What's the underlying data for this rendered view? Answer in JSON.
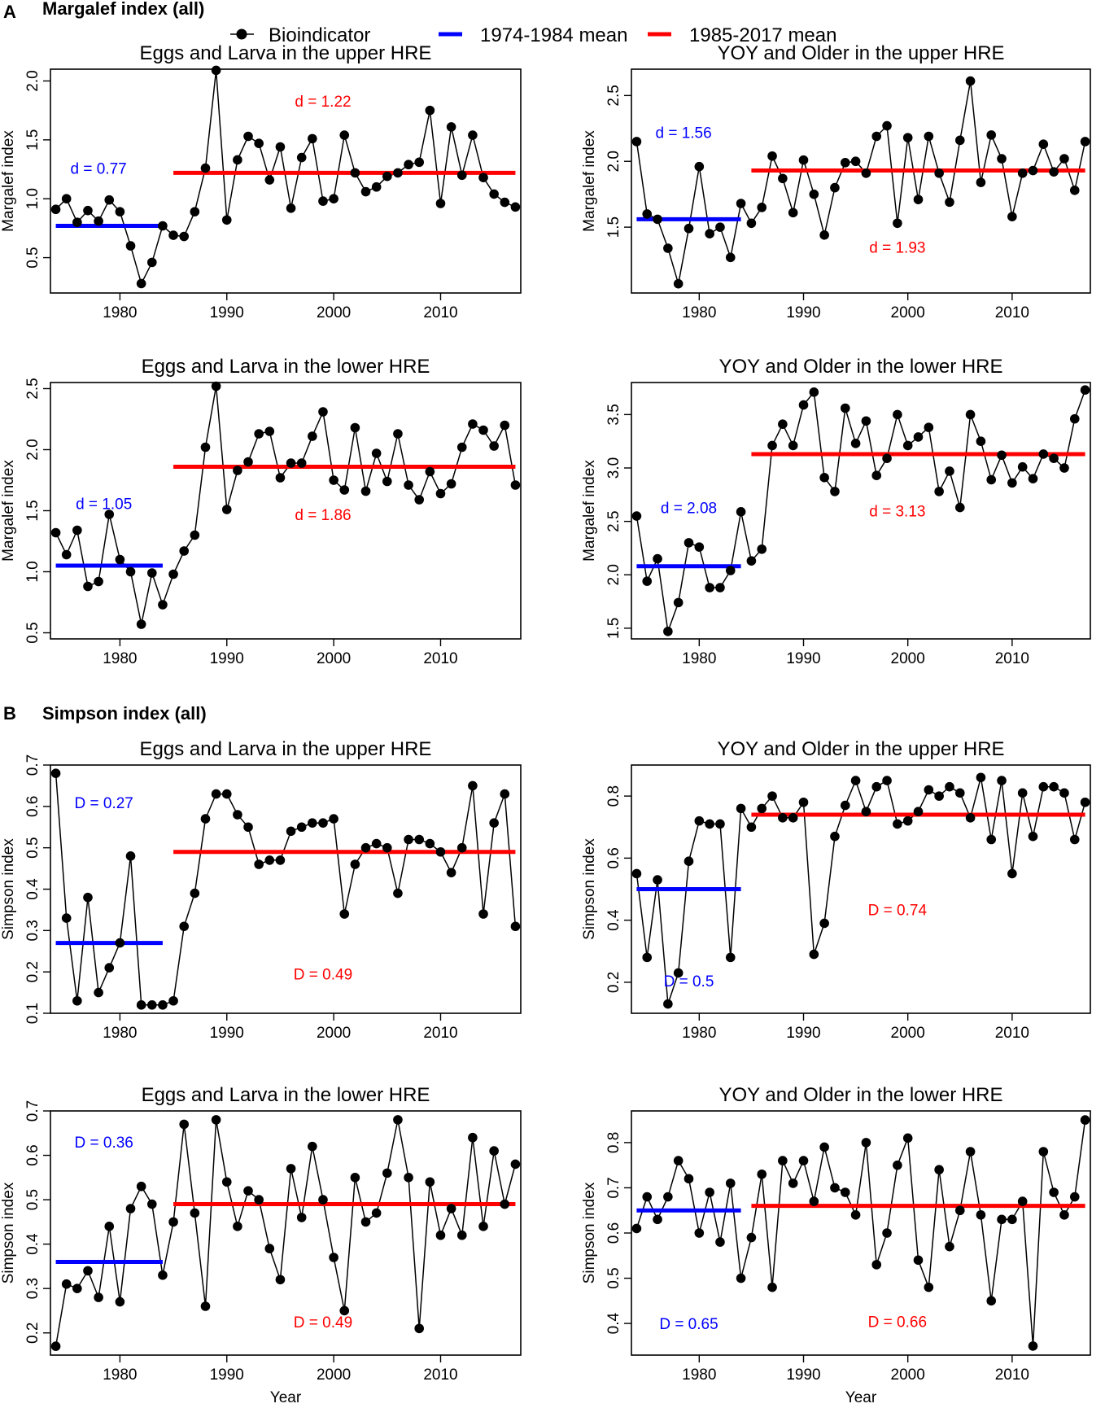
{
  "figure": {
    "sections": [
      {
        "letter": "A",
        "title": "Margalef index (all)"
      },
      {
        "letter": "B",
        "title": "Simpson index (all)"
      }
    ],
    "legend": {
      "items": [
        {
          "label": "Bioindicator",
          "kind": "points",
          "color": "#000000"
        },
        {
          "label": "1974-1984 mean",
          "kind": "line",
          "color": "#0000ff"
        },
        {
          "label": "1985-2017 mean",
          "kind": "line",
          "color": "#ff0000"
        }
      ]
    },
    "xlabel": "Year"
  },
  "chart_data": [
    {
      "type": "line",
      "title": "Eggs and Larva in the upper HRE",
      "xlabel": "",
      "ylabel": "Margalef index",
      "xlim": [
        1973.5,
        2017.5
      ],
      "ylim": [
        0.2,
        2.1
      ],
      "xticks": [
        1980,
        1990,
        2000,
        2010
      ],
      "yticks": [
        0.5,
        1.0,
        1.5,
        2.0
      ],
      "ytick_labels": [
        "0.5",
        "1.0",
        "1.5",
        "2.0"
      ],
      "series": [
        {
          "name": "Bioindicator",
          "x_start": 1974,
          "values": [
            0.91,
            1.0,
            0.8,
            0.9,
            0.81,
            0.99,
            0.89,
            0.6,
            0.28,
            0.46,
            0.77,
            0.69,
            0.68,
            0.89,
            1.26,
            2.09,
            0.82,
            1.33,
            1.53,
            1.47,
            1.16,
            1.44,
            0.92,
            1.35,
            1.51,
            0.98,
            1.0,
            1.54,
            1.22,
            1.06,
            1.1,
            1.19,
            1.22,
            1.29,
            1.31,
            1.75,
            0.96,
            1.61,
            1.2,
            1.54,
            1.18,
            1.04,
            0.97,
            0.93
          ]
        }
      ],
      "means": [
        {
          "name": "1974-1984 mean",
          "value": 0.77,
          "x_range": [
            1974,
            1984
          ]
        },
        {
          "name": "1985-2017 mean",
          "value": 1.22,
          "x_range": [
            1985,
            2017
          ]
        }
      ],
      "annotations": [
        {
          "text": "d = 0.77",
          "x": 1978,
          "y": 1.26,
          "color": "blue"
        },
        {
          "text": "d = 1.22",
          "x": 1999,
          "y": 1.83,
          "color": "red"
        }
      ]
    },
    {
      "type": "line",
      "title": "YOY and Older in the upper HRE",
      "xlabel": "",
      "ylabel": "Margalef index",
      "xlim": [
        1973.5,
        2017.5
      ],
      "ylim": [
        1.0,
        2.7
      ],
      "xticks": [
        1980,
        1990,
        2000,
        2010
      ],
      "yticks": [
        1.5,
        2.0,
        2.5
      ],
      "ytick_labels": [
        "1.5",
        "2.0",
        "2.5"
      ],
      "series": [
        {
          "name": "Bioindicator",
          "x_start": 1974,
          "values": [
            2.15,
            1.6,
            1.56,
            1.34,
            1.07,
            1.49,
            1.96,
            1.45,
            1.5,
            1.27,
            1.68,
            1.53,
            1.65,
            2.04,
            1.87,
            1.61,
            2.01,
            1.75,
            1.44,
            1.8,
            1.99,
            2.0,
            1.91,
            2.19,
            2.27,
            1.53,
            2.18,
            1.71,
            2.19,
            1.91,
            1.69,
            2.16,
            2.61,
            1.84,
            2.2,
            2.02,
            1.58,
            1.91,
            1.93,
            2.13,
            1.92,
            2.02,
            1.78,
            2.15
          ]
        }
      ],
      "means": [
        {
          "name": "1974-1984 mean",
          "value": 1.56,
          "x_range": [
            1974,
            1984
          ]
        },
        {
          "name": "1985-2017 mean",
          "value": 1.93,
          "x_range": [
            1985,
            2017
          ]
        }
      ],
      "annotations": [
        {
          "text": "d = 1.56",
          "x": 1978.5,
          "y": 2.22,
          "color": "blue"
        },
        {
          "text": "d = 1.93",
          "x": 1999,
          "y": 1.35,
          "color": "red"
        }
      ]
    },
    {
      "type": "line",
      "title": "Eggs and Larva in the lower HRE",
      "xlabel": "",
      "ylabel": "Margalef index",
      "xlim": [
        1973.5,
        2017.5
      ],
      "ylim": [
        0.45,
        2.55
      ],
      "xticks": [
        1980,
        1990,
        2000,
        2010
      ],
      "yticks": [
        0.5,
        1.0,
        1.5,
        2.0,
        2.5
      ],
      "ytick_labels": [
        "0.5",
        "1.0",
        "1.5",
        "2.0",
        "2.5"
      ],
      "series": [
        {
          "name": "Bioindicator",
          "x_start": 1974,
          "values": [
            1.32,
            1.14,
            1.34,
            0.88,
            0.92,
            1.47,
            1.1,
            1.0,
            0.57,
            0.99,
            0.73,
            0.98,
            1.17,
            1.3,
            2.02,
            2.52,
            1.51,
            1.83,
            1.9,
            2.13,
            2.15,
            1.77,
            1.89,
            1.89,
            2.11,
            2.31,
            1.75,
            1.67,
            2.18,
            1.66,
            1.97,
            1.74,
            2.13,
            1.71,
            1.59,
            1.82,
            1.64,
            1.72,
            2.02,
            2.21,
            2.16,
            2.03,
            2.2,
            1.71
          ]
        }
      ],
      "means": [
        {
          "name": "1974-1984 mean",
          "value": 1.05,
          "x_range": [
            1974,
            1984
          ]
        },
        {
          "name": "1985-2017 mean",
          "value": 1.86,
          "x_range": [
            1985,
            2017
          ]
        }
      ],
      "annotations": [
        {
          "text": "d = 1.05",
          "x": 1978.5,
          "y": 1.56,
          "color": "blue"
        },
        {
          "text": "d = 1.86",
          "x": 1999,
          "y": 1.47,
          "color": "red"
        }
      ]
    },
    {
      "type": "line",
      "title": "YOY and Older in the lower HRE",
      "xlabel": "",
      "ylabel": "Margalef index",
      "xlim": [
        1973.5,
        2017.5
      ],
      "ylim": [
        1.4,
        3.8
      ],
      "xticks": [
        1980,
        1990,
        2000,
        2010
      ],
      "yticks": [
        1.5,
        2.0,
        2.5,
        3.0,
        3.5
      ],
      "ytick_labels": [
        "1.5",
        "2.0",
        "2.5",
        "3.0",
        "3.5"
      ],
      "series": [
        {
          "name": "Bioindicator",
          "x_start": 1974,
          "values": [
            2.55,
            1.94,
            2.15,
            1.47,
            1.74,
            2.3,
            2.26,
            1.88,
            1.88,
            2.04,
            2.59,
            2.13,
            2.24,
            3.21,
            3.41,
            3.21,
            3.59,
            3.71,
            2.91,
            2.78,
            3.56,
            3.23,
            3.44,
            2.93,
            3.09,
            3.5,
            3.21,
            3.29,
            3.38,
            2.78,
            2.97,
            2.63,
            3.5,
            3.25,
            2.89,
            3.12,
            2.86,
            3.01,
            2.9,
            3.13,
            3.09,
            3.0,
            3.46,
            3.73
          ]
        }
      ],
      "means": [
        {
          "name": "1974-1984 mean",
          "value": 2.08,
          "x_range": [
            1974,
            1984
          ]
        },
        {
          "name": "1985-2017 mean",
          "value": 3.13,
          "x_range": [
            1985,
            2017
          ]
        }
      ],
      "annotations": [
        {
          "text": "d = 2.08",
          "x": 1979,
          "y": 2.63,
          "color": "blue"
        },
        {
          "text": "d = 3.13",
          "x": 1999,
          "y": 2.6,
          "color": "red"
        }
      ]
    },
    {
      "type": "line",
      "title": "Eggs and Larva in the upper HRE",
      "xlabel": "",
      "ylabel": "Simpson index",
      "xlim": [
        1973.5,
        2017.5
      ],
      "ylim": [
        0.1,
        0.7
      ],
      "xticks": [
        1980,
        1990,
        2000,
        2010
      ],
      "yticks": [
        0.1,
        0.2,
        0.3,
        0.4,
        0.5,
        0.6,
        0.7
      ],
      "ytick_labels": [
        "0.1",
        "0.2",
        "0.3",
        "0.4",
        "0.5",
        "0.6",
        "0.7"
      ],
      "series": [
        {
          "name": "Bioindicator",
          "x_start": 1974,
          "values": [
            0.68,
            0.33,
            0.13,
            0.38,
            0.15,
            0.21,
            0.27,
            0.48,
            0.12,
            0.12,
            0.12,
            0.13,
            0.31,
            0.39,
            0.57,
            0.63,
            0.63,
            0.58,
            0.55,
            0.46,
            0.47,
            0.47,
            0.54,
            0.55,
            0.56,
            0.56,
            0.57,
            0.34,
            0.46,
            0.5,
            0.51,
            0.5,
            0.39,
            0.52,
            0.52,
            0.51,
            0.49,
            0.44,
            0.5,
            0.65,
            0.34,
            0.56,
            0.63,
            0.31
          ]
        }
      ],
      "means": [
        {
          "name": "1974-1984 mean",
          "value": 0.27,
          "x_range": [
            1974,
            1984
          ]
        },
        {
          "name": "1985-2017 mean",
          "value": 0.49,
          "x_range": [
            1985,
            2017
          ]
        }
      ],
      "annotations": [
        {
          "text": "D = 0.27",
          "x": 1978.5,
          "y": 0.61,
          "color": "blue"
        },
        {
          "text": "D = 0.49",
          "x": 1999,
          "y": 0.195,
          "color": "red"
        }
      ]
    },
    {
      "type": "line",
      "title": "YOY and Older in the upper HRE",
      "xlabel": "",
      "ylabel": "Simpson index",
      "xlim": [
        1973.5,
        2017.5
      ],
      "ylim": [
        0.1,
        0.9
      ],
      "xticks": [
        1980,
        1990,
        2000,
        2010
      ],
      "yticks": [
        0.2,
        0.4,
        0.6,
        0.8
      ],
      "ytick_labels": [
        "0.2",
        "0.4",
        "0.6",
        "0.8"
      ],
      "series": [
        {
          "name": "Bioindicator",
          "x_start": 1974,
          "values": [
            0.55,
            0.28,
            0.53,
            0.13,
            0.23,
            0.59,
            0.72,
            0.71,
            0.71,
            0.28,
            0.76,
            0.7,
            0.76,
            0.8,
            0.73,
            0.73,
            0.78,
            0.29,
            0.39,
            0.67,
            0.77,
            0.85,
            0.75,
            0.83,
            0.85,
            0.71,
            0.72,
            0.75,
            0.82,
            0.8,
            0.83,
            0.81,
            0.73,
            0.86,
            0.66,
            0.85,
            0.55,
            0.81,
            0.67,
            0.83,
            0.83,
            0.81,
            0.66,
            0.78
          ]
        }
      ],
      "means": [
        {
          "name": "1974-1984 mean",
          "value": 0.5,
          "x_range": [
            1974,
            1984
          ]
        },
        {
          "name": "1985-2017 mean",
          "value": 0.74,
          "x_range": [
            1985,
            2017
          ]
        }
      ],
      "annotations": [
        {
          "text": "D = 0.5",
          "x": 1979,
          "y": 0.205,
          "color": "blue"
        },
        {
          "text": "D = 0.74",
          "x": 1999,
          "y": 0.435,
          "color": "red"
        }
      ]
    },
    {
      "type": "line",
      "title": "Eggs and Larva in the lower HRE",
      "xlabel": "Year",
      "ylabel": "Simpson index",
      "xlim": [
        1973.5,
        2017.5
      ],
      "ylim": [
        0.15,
        0.7
      ],
      "xticks": [
        1980,
        1990,
        2000,
        2010
      ],
      "yticks": [
        0.2,
        0.3,
        0.4,
        0.5,
        0.6,
        0.7
      ],
      "ytick_labels": [
        "0.2",
        "0.3",
        "0.4",
        "0.5",
        "0.6",
        "0.7"
      ],
      "series": [
        {
          "name": "Bioindicator",
          "x_start": 1974,
          "values": [
            0.17,
            0.31,
            0.3,
            0.34,
            0.28,
            0.44,
            0.27,
            0.48,
            0.53,
            0.49,
            0.33,
            0.45,
            0.67,
            0.47,
            0.26,
            0.68,
            0.54,
            0.44,
            0.52,
            0.5,
            0.39,
            0.32,
            0.57,
            0.46,
            0.62,
            0.5,
            0.37,
            0.25,
            0.55,
            0.45,
            0.47,
            0.56,
            0.68,
            0.55,
            0.21,
            0.54,
            0.42,
            0.48,
            0.42,
            0.64,
            0.44,
            0.61,
            0.49,
            0.58
          ]
        }
      ],
      "means": [
        {
          "name": "1974-1984 mean",
          "value": 0.36,
          "x_range": [
            1974,
            1984
          ]
        },
        {
          "name": "1985-2017 mean",
          "value": 0.49,
          "x_range": [
            1985,
            2017
          ]
        }
      ],
      "annotations": [
        {
          "text": "D = 0.36",
          "x": 1978.5,
          "y": 0.63,
          "color": "blue"
        },
        {
          "text": "D = 0.49",
          "x": 1999,
          "y": 0.225,
          "color": "red"
        }
      ]
    },
    {
      "type": "line",
      "title": "YOY and Older in the lower HRE",
      "xlabel": "Year",
      "ylabel": "Simpson index",
      "xlim": [
        1973.5,
        2017.5
      ],
      "ylim": [
        0.33,
        0.87
      ],
      "xticks": [
        1980,
        1990,
        2000,
        2010
      ],
      "yticks": [
        0.4,
        0.5,
        0.6,
        0.7,
        0.8
      ],
      "ytick_labels": [
        "0.4",
        "0.5",
        "0.6",
        "0.7",
        "0.8"
      ],
      "series": [
        {
          "name": "Bioindicator",
          "x_start": 1974,
          "values": [
            0.61,
            0.68,
            0.63,
            0.68,
            0.76,
            0.72,
            0.6,
            0.69,
            0.58,
            0.71,
            0.5,
            0.59,
            0.73,
            0.48,
            0.76,
            0.71,
            0.76,
            0.67,
            0.79,
            0.7,
            0.69,
            0.64,
            0.8,
            0.53,
            0.6,
            0.75,
            0.81,
            0.54,
            0.48,
            0.74,
            0.57,
            0.65,
            0.78,
            0.64,
            0.45,
            0.63,
            0.63,
            0.67,
            0.35,
            0.78,
            0.69,
            0.64,
            0.68,
            0.85
          ]
        }
      ],
      "means": [
        {
          "name": "1974-1984 mean",
          "value": 0.65,
          "x_range": [
            1974,
            1984
          ]
        },
        {
          "name": "1985-2017 mean",
          "value": 0.66,
          "x_range": [
            1985,
            2017
          ]
        }
      ],
      "annotations": [
        {
          "text": "D = 0.65",
          "x": 1979,
          "y": 0.4,
          "color": "blue"
        },
        {
          "text": "D = 0.66",
          "x": 1999,
          "y": 0.405,
          "color": "red"
        }
      ]
    }
  ]
}
